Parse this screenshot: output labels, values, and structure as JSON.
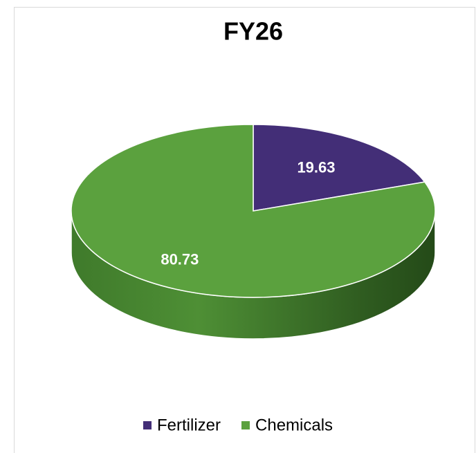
{
  "chart_data": {
    "type": "pie",
    "title": "FY26",
    "categories": [
      "Fertilizer",
      "Chemicals"
    ],
    "values": [
      19.63,
      80.73
    ],
    "colors": [
      "#432e77",
      "#5ba13e"
    ],
    "legend": "bottom"
  }
}
